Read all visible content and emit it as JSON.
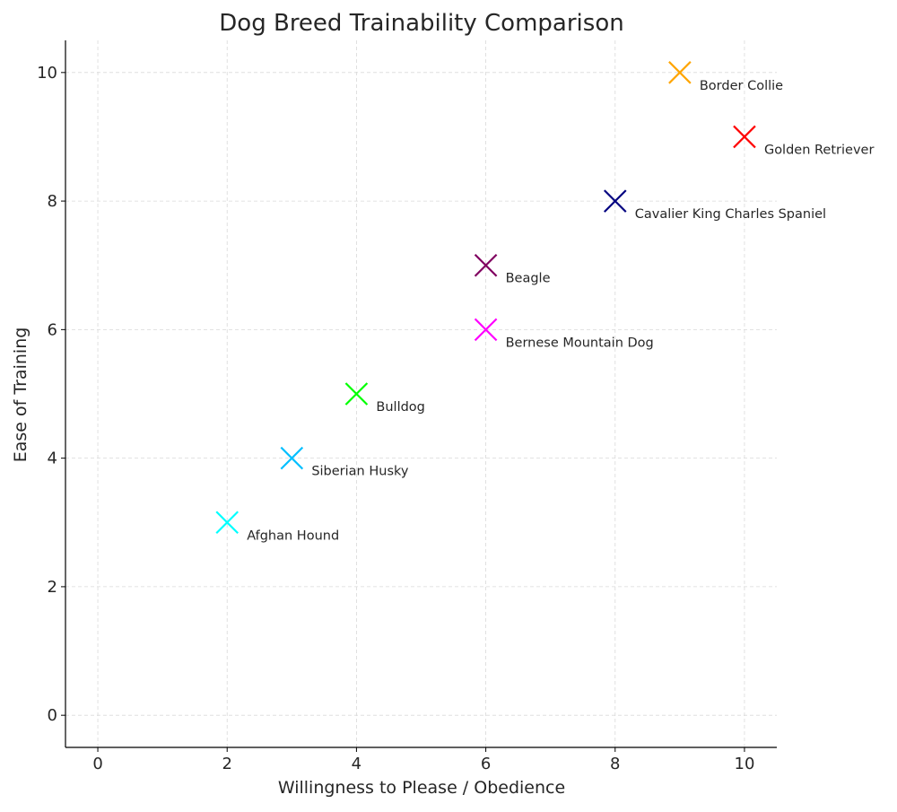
{
  "chart_data": {
    "type": "scatter",
    "title": "Dog Breed Trainability Comparison",
    "xlabel": "Willingness to Please / Obedience",
    "ylabel": "Ease of Training",
    "xlim": [
      -0.5,
      10.5
    ],
    "ylim": [
      -0.5,
      10.5
    ],
    "xticks": [
      0,
      2,
      4,
      6,
      8,
      10
    ],
    "yticks": [
      0,
      2,
      4,
      6,
      8,
      10
    ],
    "grid": true,
    "marker": "x",
    "points": [
      {
        "label": "Border Collie",
        "x": 9,
        "y": 10,
        "color": "#FFA500"
      },
      {
        "label": "Golden Retriever",
        "x": 10,
        "y": 9,
        "color": "#FF0000"
      },
      {
        "label": "Cavalier King Charles Spaniel",
        "x": 8,
        "y": 8,
        "color": "#000080"
      },
      {
        "label": "Beagle",
        "x": 6,
        "y": 7,
        "color": "#800060"
      },
      {
        "label": "Bernese Mountain Dog",
        "x": 6,
        "y": 6,
        "color": "#FF00FF"
      },
      {
        "label": "Bulldog",
        "x": 4,
        "y": 5,
        "color": "#00FF00"
      },
      {
        "label": "Siberian Husky",
        "x": 3,
        "y": 4,
        "color": "#00BFFF"
      },
      {
        "label": "Afghan Hound",
        "x": 2,
        "y": 3,
        "color": "#00FFFF"
      }
    ]
  }
}
